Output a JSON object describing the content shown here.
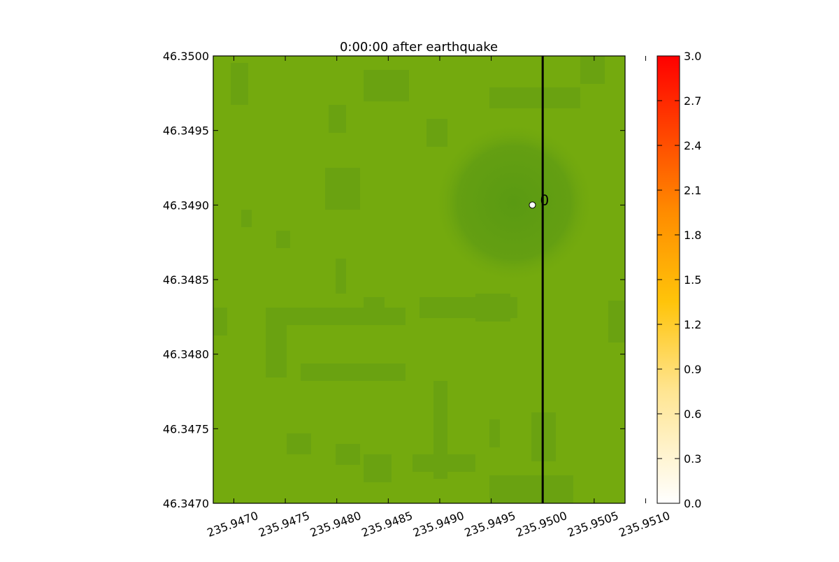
{
  "chart_data": {
    "type": "heatmap",
    "title": "0:00:00 after earthquake",
    "xlabel": "",
    "ylabel": "",
    "xlim": [
      235.9468,
      235.9508
    ],
    "ylim": [
      46.347,
      46.35
    ],
    "x_ticks": [
      {
        "value": 235.947,
        "label": "235.9470"
      },
      {
        "value": 235.9475,
        "label": "235.9475"
      },
      {
        "value": 235.948,
        "label": "235.9480"
      },
      {
        "value": 235.9485,
        "label": "235.9485"
      },
      {
        "value": 235.949,
        "label": "235.9490"
      },
      {
        "value": 235.9495,
        "label": "235.9495"
      },
      {
        "value": 235.95,
        "label": "235.9500"
      },
      {
        "value": 235.9505,
        "label": "235.9505"
      },
      {
        "value": 235.951,
        "label": "235.9510"
      }
    ],
    "y_ticks": [
      {
        "value": 46.347,
        "label": "46.3470"
      },
      {
        "value": 46.3475,
        "label": "46.3475"
      },
      {
        "value": 46.348,
        "label": "46.3480"
      },
      {
        "value": 46.3485,
        "label": "46.3485"
      },
      {
        "value": 46.349,
        "label": "46.3490"
      },
      {
        "value": 46.3495,
        "label": "46.3495"
      },
      {
        "value": 46.35,
        "label": "46.3500"
      }
    ],
    "background_color": "#74aa0e",
    "vertical_line": {
      "x": 235.95,
      "color": "#000000"
    },
    "marker": {
      "x": 235.9499,
      "y": 46.349,
      "label": "0",
      "color": "#ffffff"
    },
    "colorbar": {
      "range": [
        0.0,
        3.0
      ],
      "ticks": [
        "0.0",
        "0.3",
        "0.6",
        "0.9",
        "1.2",
        "1.5",
        "1.8",
        "2.1",
        "2.4",
        "2.7",
        "3.0"
      ],
      "colors": [
        "#ffffff",
        "#ffe27a",
        "#ffc400",
        "#ff8c00",
        "#ff0000"
      ]
    },
    "grid": false
  }
}
